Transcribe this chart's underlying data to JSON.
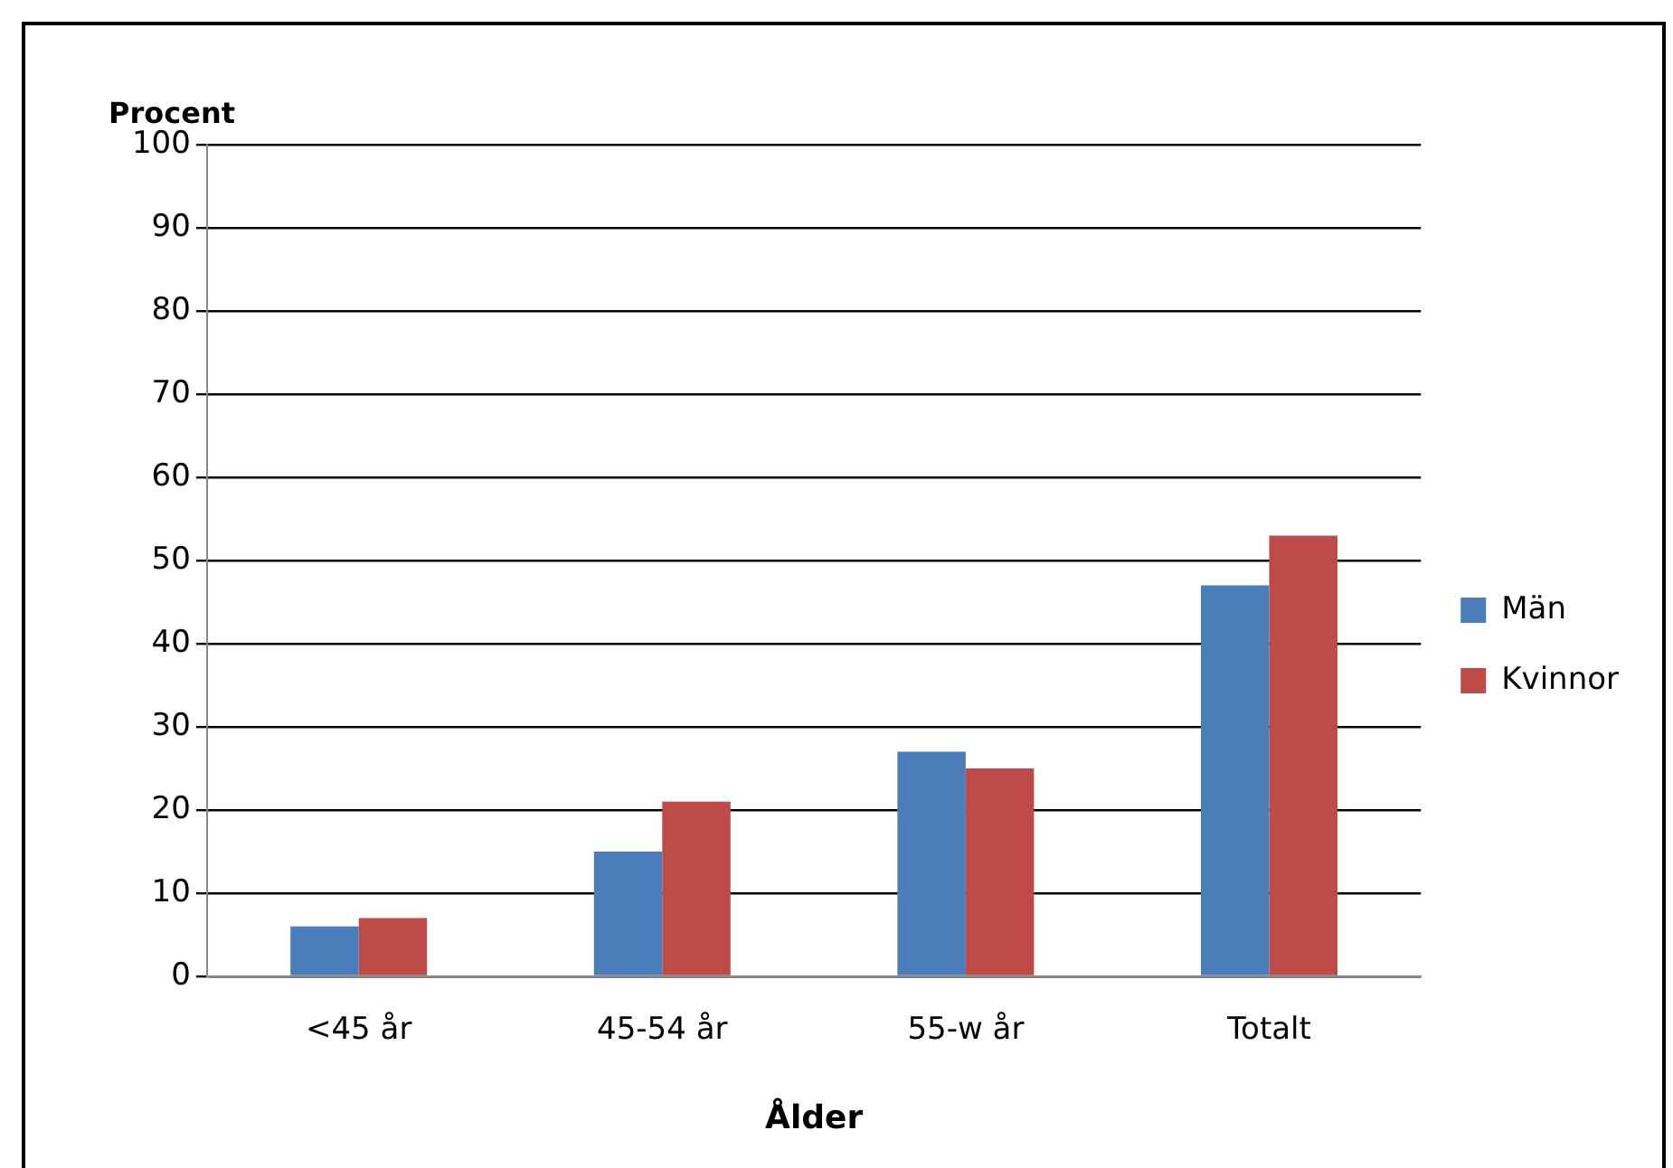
{
  "chart_data": {
    "type": "bar",
    "ylabel": "Procent",
    "xlabel": "Ålder",
    "categories": [
      "<45 år",
      "45-54 år",
      "55-w år",
      "Totalt"
    ],
    "series": [
      {
        "name": "Män",
        "color": "#4a7ebb",
        "values": [
          6,
          15,
          27,
          47
        ]
      },
      {
        "name": "Kvinnor",
        "color": "#be4b48",
        "values": [
          7,
          21,
          25,
          53
        ]
      }
    ],
    "ylim": [
      0,
      100
    ],
    "yticks": [
      0,
      10,
      20,
      30,
      40,
      50,
      60,
      70,
      80,
      90,
      100
    ],
    "grid": "y",
    "legend": "right"
  }
}
